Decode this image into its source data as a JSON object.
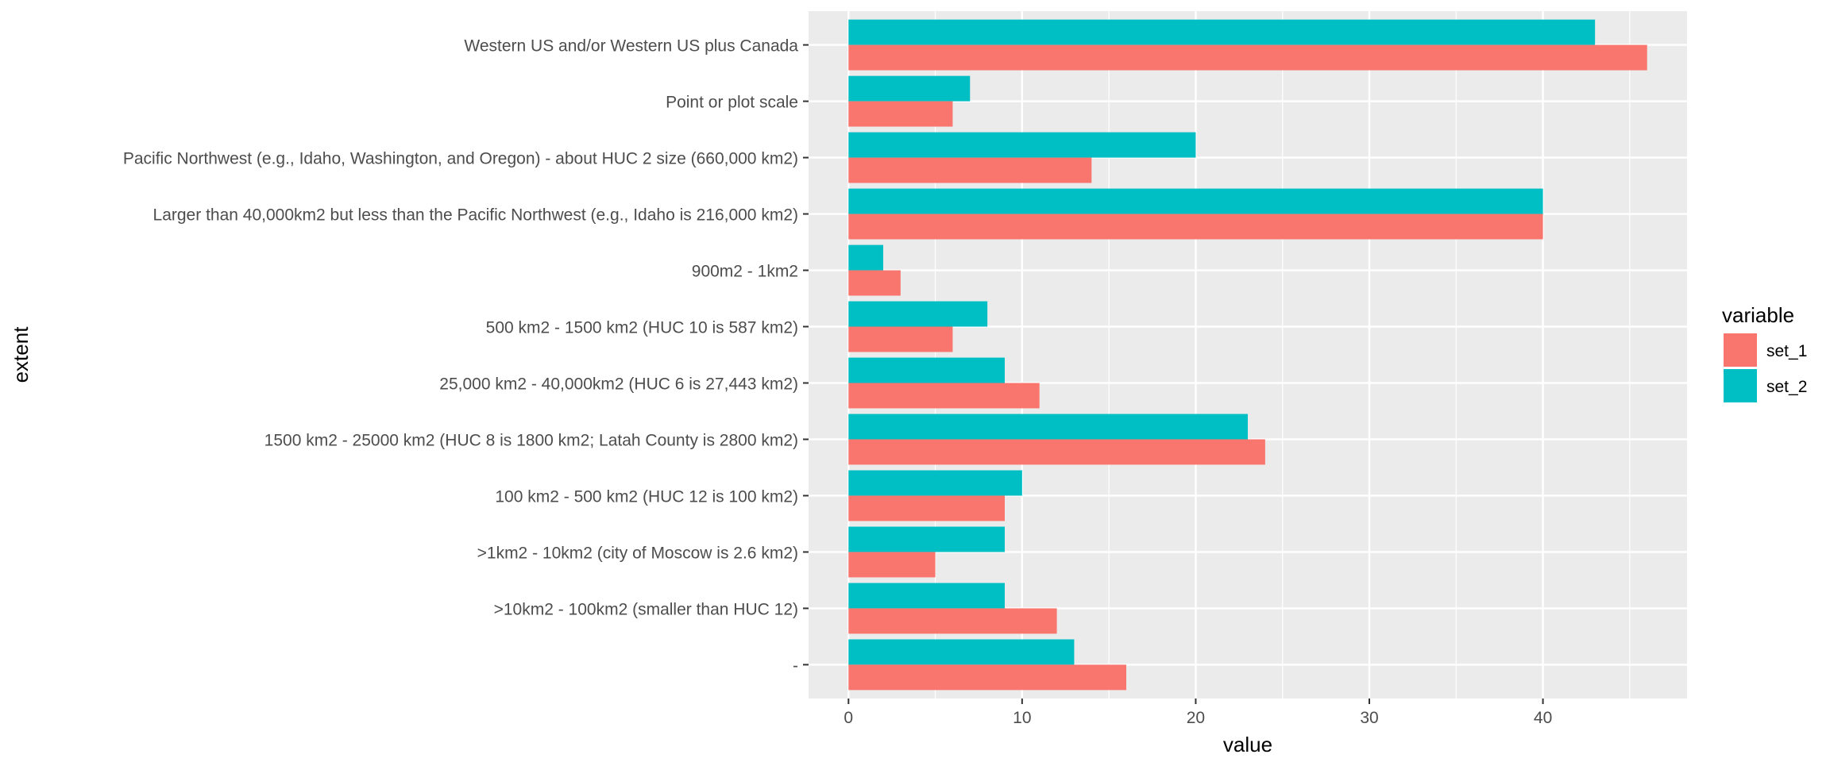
{
  "chart_data": {
    "type": "bar",
    "orientation": "horizontal",
    "title": "",
    "xlabel": "value",
    "ylabel": "extent",
    "xlim": [
      -2.3,
      48.3
    ],
    "xticks": [
      0,
      10,
      20,
      30,
      40
    ],
    "grid": true,
    "legend_position": "right",
    "legend_title": "variable",
    "categories": [
      "Western US and/or Western US plus Canada",
      "Point or plot scale",
      "Pacific Northwest (e.g., Idaho, Washington, and Oregon) - about HUC 2 size (660,000 km2)",
      "Larger than 40,000km2 but less than the Pacific Northwest (e.g., Idaho is 216,000 km2)",
      "900m2 - 1km2",
      "500 km2 - 1500 km2 (HUC 10 is 587 km2)",
      "25,000 km2 - 40,000km2 (HUC 6 is 27,443 km2)",
      "1500 km2 - 25000 km2 (HUC 8 is 1800 km2; Latah County is 2800 km2)",
      "100 km2 - 500 km2 (HUC 12 is 100 km2)",
      ">1km2 - 10km2 (city of Moscow is 2.6 km2)",
      ">10km2 - 100km2 (smaller than HUC 12)",
      "-"
    ],
    "series": [
      {
        "name": "set_1",
        "color": "#F8766D",
        "values": [
          46,
          6,
          14,
          40,
          3,
          6,
          11,
          24,
          9,
          5,
          12,
          16
        ]
      },
      {
        "name": "set_2",
        "color": "#00BFC4",
        "values": [
          43,
          7,
          20,
          40,
          2,
          8,
          9,
          23,
          10,
          9,
          9,
          13
        ]
      }
    ]
  },
  "colors": {
    "panel_background": "#EBEBEB",
    "grid_line": "#FFFFFF",
    "set_1": "#F8766D",
    "set_2": "#00BFC4"
  }
}
